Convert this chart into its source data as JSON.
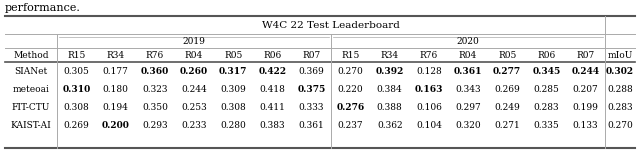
{
  "title": "W4C 22 Test Leaderboard",
  "perf_text": "performance.",
  "years": [
    "2019",
    "2020"
  ],
  "sub_cols": [
    "R15",
    "R34",
    "R76",
    "R04",
    "R05",
    "R06",
    "R07"
  ],
  "rows": [
    {
      "method": "SIANet",
      "vals": [
        0.305,
        0.177,
        0.36,
        0.26,
        0.317,
        0.422,
        0.369,
        0.27,
        0.392,
        0.128,
        0.361,
        0.277,
        0.345,
        0.244,
        0.302
      ],
      "bold": [
        false,
        false,
        true,
        true,
        true,
        true,
        false,
        false,
        true,
        false,
        true,
        true,
        true,
        true,
        true
      ]
    },
    {
      "method": "meteoai",
      "vals": [
        0.31,
        0.18,
        0.323,
        0.244,
        0.309,
        0.418,
        0.375,
        0.22,
        0.384,
        0.163,
        0.343,
        0.269,
        0.285,
        0.207,
        0.288
      ],
      "bold": [
        true,
        false,
        false,
        false,
        false,
        false,
        true,
        false,
        false,
        true,
        false,
        false,
        false,
        false,
        false
      ]
    },
    {
      "method": "FIT-CTU",
      "vals": [
        0.308,
        0.194,
        0.35,
        0.253,
        0.308,
        0.411,
        0.333,
        0.276,
        0.388,
        0.106,
        0.297,
        0.249,
        0.283,
        0.199,
        0.283
      ],
      "bold": [
        false,
        false,
        false,
        false,
        false,
        false,
        false,
        true,
        false,
        false,
        false,
        false,
        false,
        false,
        false
      ]
    },
    {
      "method": "KAIST-AI",
      "vals": [
        0.269,
        0.2,
        0.293,
        0.233,
        0.28,
        0.383,
        0.361,
        0.237,
        0.362,
        0.104,
        0.32,
        0.271,
        0.335,
        0.133,
        0.27
      ],
      "bold": [
        false,
        true,
        false,
        false,
        false,
        false,
        false,
        false,
        false,
        false,
        false,
        false,
        false,
        false,
        false
      ]
    }
  ],
  "bg_color": "#ffffff",
  "line_color_heavy": "#555555",
  "line_color_light": "#aaaaaa",
  "font_size": 6.5,
  "title_font_size": 7.5,
  "perf_font_size": 8.0
}
